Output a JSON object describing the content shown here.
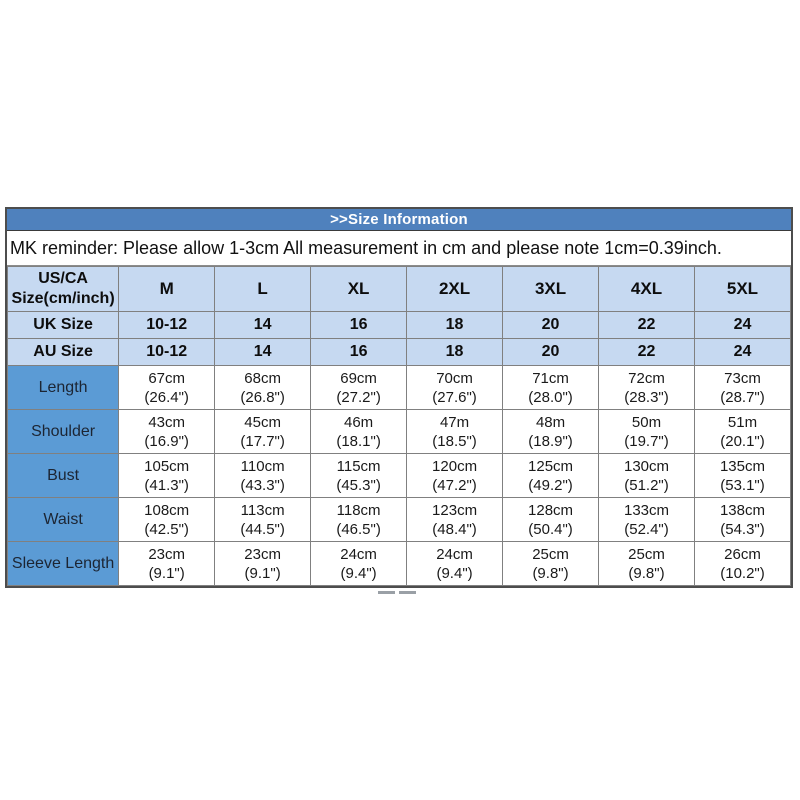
{
  "title_bar": {
    "label": ">>Size Information"
  },
  "reminder": {
    "text": "MK reminder: Please allow 1-3cm All measurement in cm and please note 1cm=0.39inch."
  },
  "size_table": {
    "corner_line1": "US/CA",
    "corner_line2": "Size(cm/inch)",
    "sizes": [
      "M",
      "L",
      "XL",
      "2XL",
      "3XL",
      "4XL",
      "5XL"
    ],
    "uk_row": {
      "label": "UK Size",
      "values": [
        "10-12",
        "14",
        "16",
        "18",
        "20",
        "22",
        "24"
      ]
    },
    "au_row": {
      "label": "AU Size",
      "values": [
        "10-12",
        "14",
        "16",
        "18",
        "20",
        "22",
        "24"
      ]
    },
    "measurement_rows": [
      {
        "label": "Length",
        "cm": [
          "67cm",
          "68cm",
          "69cm",
          "70cm",
          "71cm",
          "72cm",
          "73cm"
        ],
        "inch": [
          "(26.4\")",
          "(26.8\")",
          "(27.2\")",
          "(27.6\")",
          "(28.0\")",
          "(28.3\")",
          "(28.7\")"
        ]
      },
      {
        "label": "Shoulder",
        "cm": [
          "43cm",
          "45cm",
          "46m",
          "47m",
          "48m",
          "50m",
          "51m"
        ],
        "inch": [
          "(16.9\")",
          "(17.7\")",
          "(18.1\")",
          "(18.5\")",
          "(18.9\")",
          "(19.7\")",
          "(20.1\")"
        ]
      },
      {
        "label": "Bust",
        "cm": [
          "105cm",
          "110cm",
          "115cm",
          "120cm",
          "125cm",
          "130cm",
          "135cm"
        ],
        "inch": [
          "(41.3\")",
          "(43.3\")",
          "(45.3\")",
          "(47.2\")",
          "(49.2\")",
          "(51.2\")",
          "(53.1\")"
        ]
      },
      {
        "label": "Waist",
        "cm": [
          "108cm",
          "113cm",
          "118cm",
          "123cm",
          "128cm",
          "133cm",
          "138cm"
        ],
        "inch": [
          "(42.5\")",
          "(44.5\")",
          "(46.5\")",
          "(48.4\")",
          "(50.4\")",
          "(52.4\")",
          "(54.3\")"
        ]
      },
      {
        "label": "Sleeve Length",
        "cm": [
          "23cm",
          "23cm",
          "24cm",
          "24cm",
          "25cm",
          "25cm",
          "26cm"
        ],
        "inch": [
          "(9.1\")",
          "(9.1\")",
          "(9.4\")",
          "(9.4\")",
          "(9.8\")",
          "(9.8\")",
          "(10.2\")"
        ]
      }
    ]
  },
  "colors": {
    "title_bar_blue": "#4f81bd",
    "header_light_blue": "#c6d9f1",
    "label_column_blue": "#5b9bd5",
    "grid_border_gray": "#808080",
    "outer_border_gray": "#4d4d4d"
  }
}
